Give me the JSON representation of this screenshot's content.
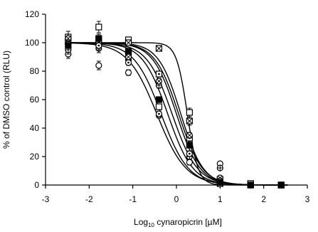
{
  "chart_data": {
    "type": "scatter",
    "title": "",
    "xlabel": {
      "prefix": "Log",
      "subscript": "10",
      "suffix": " cynaropicrin [µM]"
    },
    "ylabel": "% of DMSO control (RLU)",
    "xlim": [
      -3,
      3
    ],
    "ylim": [
      0,
      120
    ],
    "x_ticks": [
      -3,
      -2,
      -1,
      0,
      1,
      2,
      3
    ],
    "y_ticks": [
      0,
      20,
      40,
      60,
      80,
      100,
      120
    ],
    "grid": false,
    "legend": "none",
    "fit_curves": [
      {
        "logIC50": -0.45,
        "hill": -1.3,
        "top": 100,
        "bottom": 0
      },
      {
        "logIC50": -0.35,
        "hill": -1.4,
        "top": 100,
        "bottom": 0
      },
      {
        "logIC50": -0.2,
        "hill": -1.5,
        "top": 100,
        "bottom": 0
      },
      {
        "logIC50": -0.1,
        "hill": -1.5,
        "top": 100,
        "bottom": 0
      },
      {
        "logIC50": 0.0,
        "hill": -1.6,
        "top": 100,
        "bottom": 0
      },
      {
        "logIC50": 0.05,
        "hill": -1.6,
        "top": 100,
        "bottom": 0
      },
      {
        "logIC50": 0.1,
        "hill": -1.7,
        "top": 100,
        "bottom": 0
      },
      {
        "logIC50": 0.25,
        "hill": -3.5,
        "top": 100,
        "bottom": 0
      }
    ],
    "series": [
      {
        "marker": "square-open",
        "points": [
          [
            -2.48,
            104,
            4
          ],
          [
            -1.78,
            111,
            4
          ],
          [
            -1.1,
            102,
            2
          ],
          [
            -0.4,
            55,
            2
          ],
          [
            0.3,
            51,
            3
          ],
          [
            1.0,
            4,
            1
          ],
          [
            1.7,
            1,
            1
          ],
          [
            2.4,
            0,
            1
          ]
        ]
      },
      {
        "marker": "square-x",
        "points": [
          [
            -2.48,
            100,
            3
          ],
          [
            -1.78,
            100,
            3
          ],
          [
            -1.1,
            100,
            2
          ],
          [
            -0.4,
            96,
            2
          ],
          [
            0.3,
            45,
            3
          ],
          [
            1.0,
            1,
            1
          ],
          [
            1.7,
            0,
            1
          ],
          [
            2.4,
            0,
            1
          ]
        ]
      },
      {
        "marker": "square-dot",
        "points": [
          [
            -2.48,
            101,
            3
          ],
          [
            -1.78,
            102,
            3
          ],
          [
            -1.1,
            92,
            2
          ],
          [
            -0.4,
            78,
            2
          ],
          [
            0.3,
            33,
            2
          ],
          [
            1.0,
            3,
            1
          ],
          [
            1.7,
            1,
            1
          ],
          [
            2.4,
            0,
            1
          ]
        ]
      },
      {
        "marker": "circle-open",
        "points": [
          [
            -2.48,
            92,
            3
          ],
          [
            -1.78,
            84,
            3
          ],
          [
            -1.1,
            79,
            2
          ],
          [
            -0.4,
            49,
            2
          ],
          [
            0.3,
            16,
            2
          ],
          [
            1.0,
            15,
            1
          ],
          [
            1.7,
            0,
            1
          ],
          [
            2.4,
            0,
            1
          ]
        ]
      },
      {
        "marker": "circle-cross",
        "points": [
          [
            -2.48,
            95,
            3
          ],
          [
            -1.78,
            96,
            3
          ],
          [
            -1.1,
            88,
            2
          ],
          [
            -0.4,
            70,
            2
          ],
          [
            0.3,
            20,
            2
          ],
          [
            1.0,
            12,
            1
          ],
          [
            1.7,
            0,
            1
          ],
          [
            2.4,
            0,
            1
          ]
        ]
      },
      {
        "marker": "circle-x",
        "points": [
          [
            -2.48,
            103,
            3
          ],
          [
            -1.78,
            100,
            3
          ],
          [
            -1.1,
            90,
            2
          ],
          [
            -0.4,
            73,
            2
          ],
          [
            0.3,
            35,
            2
          ],
          [
            1.0,
            5,
            1
          ],
          [
            1.7,
            0,
            1
          ],
          [
            2.4,
            0,
            1
          ]
        ]
      },
      {
        "marker": "circle-dot",
        "points": [
          [
            -2.48,
            99,
            3
          ],
          [
            -1.78,
            98,
            3
          ],
          [
            -1.1,
            86,
            2
          ],
          [
            -0.4,
            50,
            2
          ],
          [
            0.3,
            22,
            2
          ],
          [
            1.0,
            3,
            1
          ],
          [
            1.7,
            0,
            1
          ],
          [
            2.4,
            0,
            1
          ]
        ]
      },
      {
        "marker": "square-filled",
        "points": [
          [
            -2.48,
            98,
            3
          ],
          [
            -1.78,
            103,
            3
          ],
          [
            -1.1,
            94,
            2
          ],
          [
            -0.4,
            60,
            2
          ],
          [
            0.3,
            28,
            2
          ],
          [
            1.0,
            2,
            1
          ],
          [
            1.7,
            0,
            1
          ],
          [
            2.4,
            0,
            1
          ]
        ]
      }
    ],
    "marker_color": "#000000",
    "curve_color": "#000000"
  }
}
